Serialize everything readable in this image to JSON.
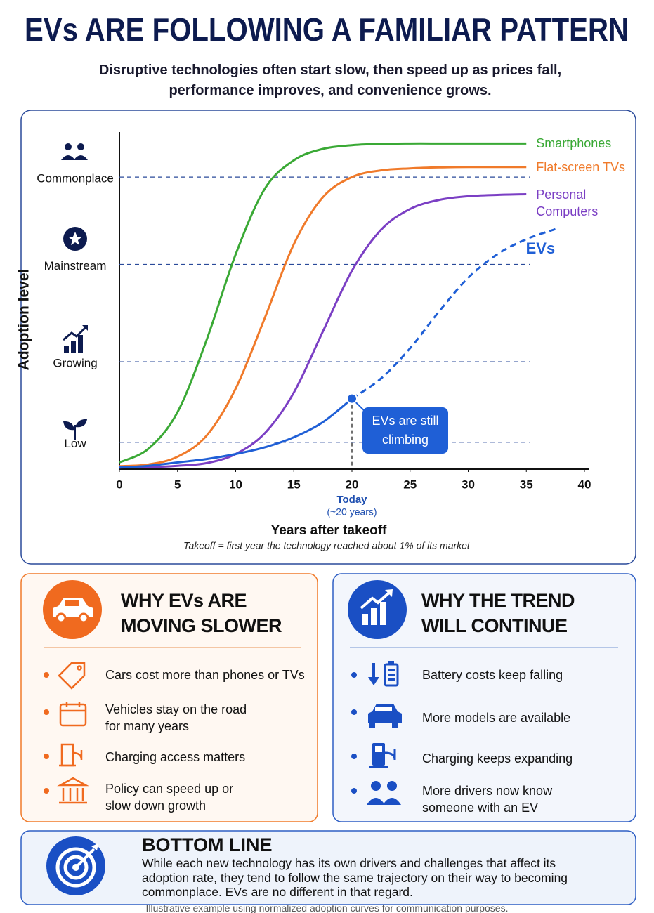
{
  "title": "EVs ARE FOLLOWING A FAMILIAR PATTERN",
  "subtitle": "Disruptive technologies often start slow, then speed up as prices fall, performance improves, and convenience grows.",
  "chart_data": {
    "type": "line",
    "y_label": "Adoption level",
    "x_label": "Years after takeoff",
    "note": "Takeoff = first year the technology reached about 1% of its market",
    "x": [
      0,
      2.5,
      5,
      7.5,
      10,
      12.5,
      15,
      17.5,
      20,
      22.5,
      25,
      27.5,
      30,
      32.5,
      35,
      37.5
    ],
    "xlim": [
      0,
      40
    ],
    "xticks": [
      0,
      5,
      10,
      15,
      20,
      25,
      30,
      35,
      40
    ],
    "ylim": [
      0,
      100
    ],
    "yticks": [
      {
        "value": 8,
        "label": "Low"
      },
      {
        "value": 32,
        "label": "Growing"
      },
      {
        "value": 61,
        "label": "Mainstream"
      },
      {
        "value": 87,
        "label": "Commonplace"
      }
    ],
    "grid": true,
    "series": [
      {
        "name": "Smartphones",
        "color": "#3aa935",
        "values": [
          2,
          6.1,
          17,
          38.5,
          64,
          83.5,
          92,
          95.4,
          96.5,
          96.9,
          97,
          97,
          97,
          97,
          97,
          null
        ]
      },
      {
        "name": "Flat-screen TVs",
        "color": "#f07a2a",
        "values": [
          0.9,
          1.4,
          3.7,
          10,
          24,
          45,
          67,
          81,
          87,
          89,
          89.6,
          89.9,
          90,
          90,
          90,
          null
        ]
      },
      {
        "name": "Personal Computers",
        "color": "#7b3fc4",
        "values": [
          0.5,
          0.6,
          1,
          1.8,
          4.5,
          10.7,
          22.8,
          41,
          59.1,
          71.3,
          77.5,
          80.2,
          81.3,
          81.7,
          81.9,
          null
        ]
      },
      {
        "name": "EVs",
        "color": "#1f5fd6",
        "projected_after_today": true,
        "values": [
          0.5,
          1,
          2,
          3,
          4.5,
          6.5,
          9.5,
          14,
          21,
          27,
          36,
          47,
          57,
          64,
          68.5,
          71.5
        ]
      }
    ],
    "today": {
      "x": 20,
      "label": "Today",
      "sublabel": "(~20 years)"
    },
    "callout": "EVs are still climbing"
  },
  "panels": {
    "slower": {
      "title": "WHY EVs ARE MOVING SLOWER",
      "items": [
        "Cars cost more than phones or TVs",
        "Vehicles stay on the road for many years",
        "Charging access matters",
        "Policy can speed up or slow down growth"
      ]
    },
    "continue": {
      "title": "WHY THE TREND WILL CONTINUE",
      "items": [
        "Battery costs keep falling",
        "More models are available",
        "Charging keeps expanding",
        "More drivers now know someone with an EV"
      ]
    }
  },
  "bottom_line": {
    "title": "BOTTOM LINE",
    "text": "While each new technology has its own drivers and challenges that affect its adoption rate, they tend to follow the same trajectory on their way to becoming commonplace. EVs are no different in that regard."
  },
  "footnote": "Illustrative example using normalized adoption curves for communication purposes."
}
